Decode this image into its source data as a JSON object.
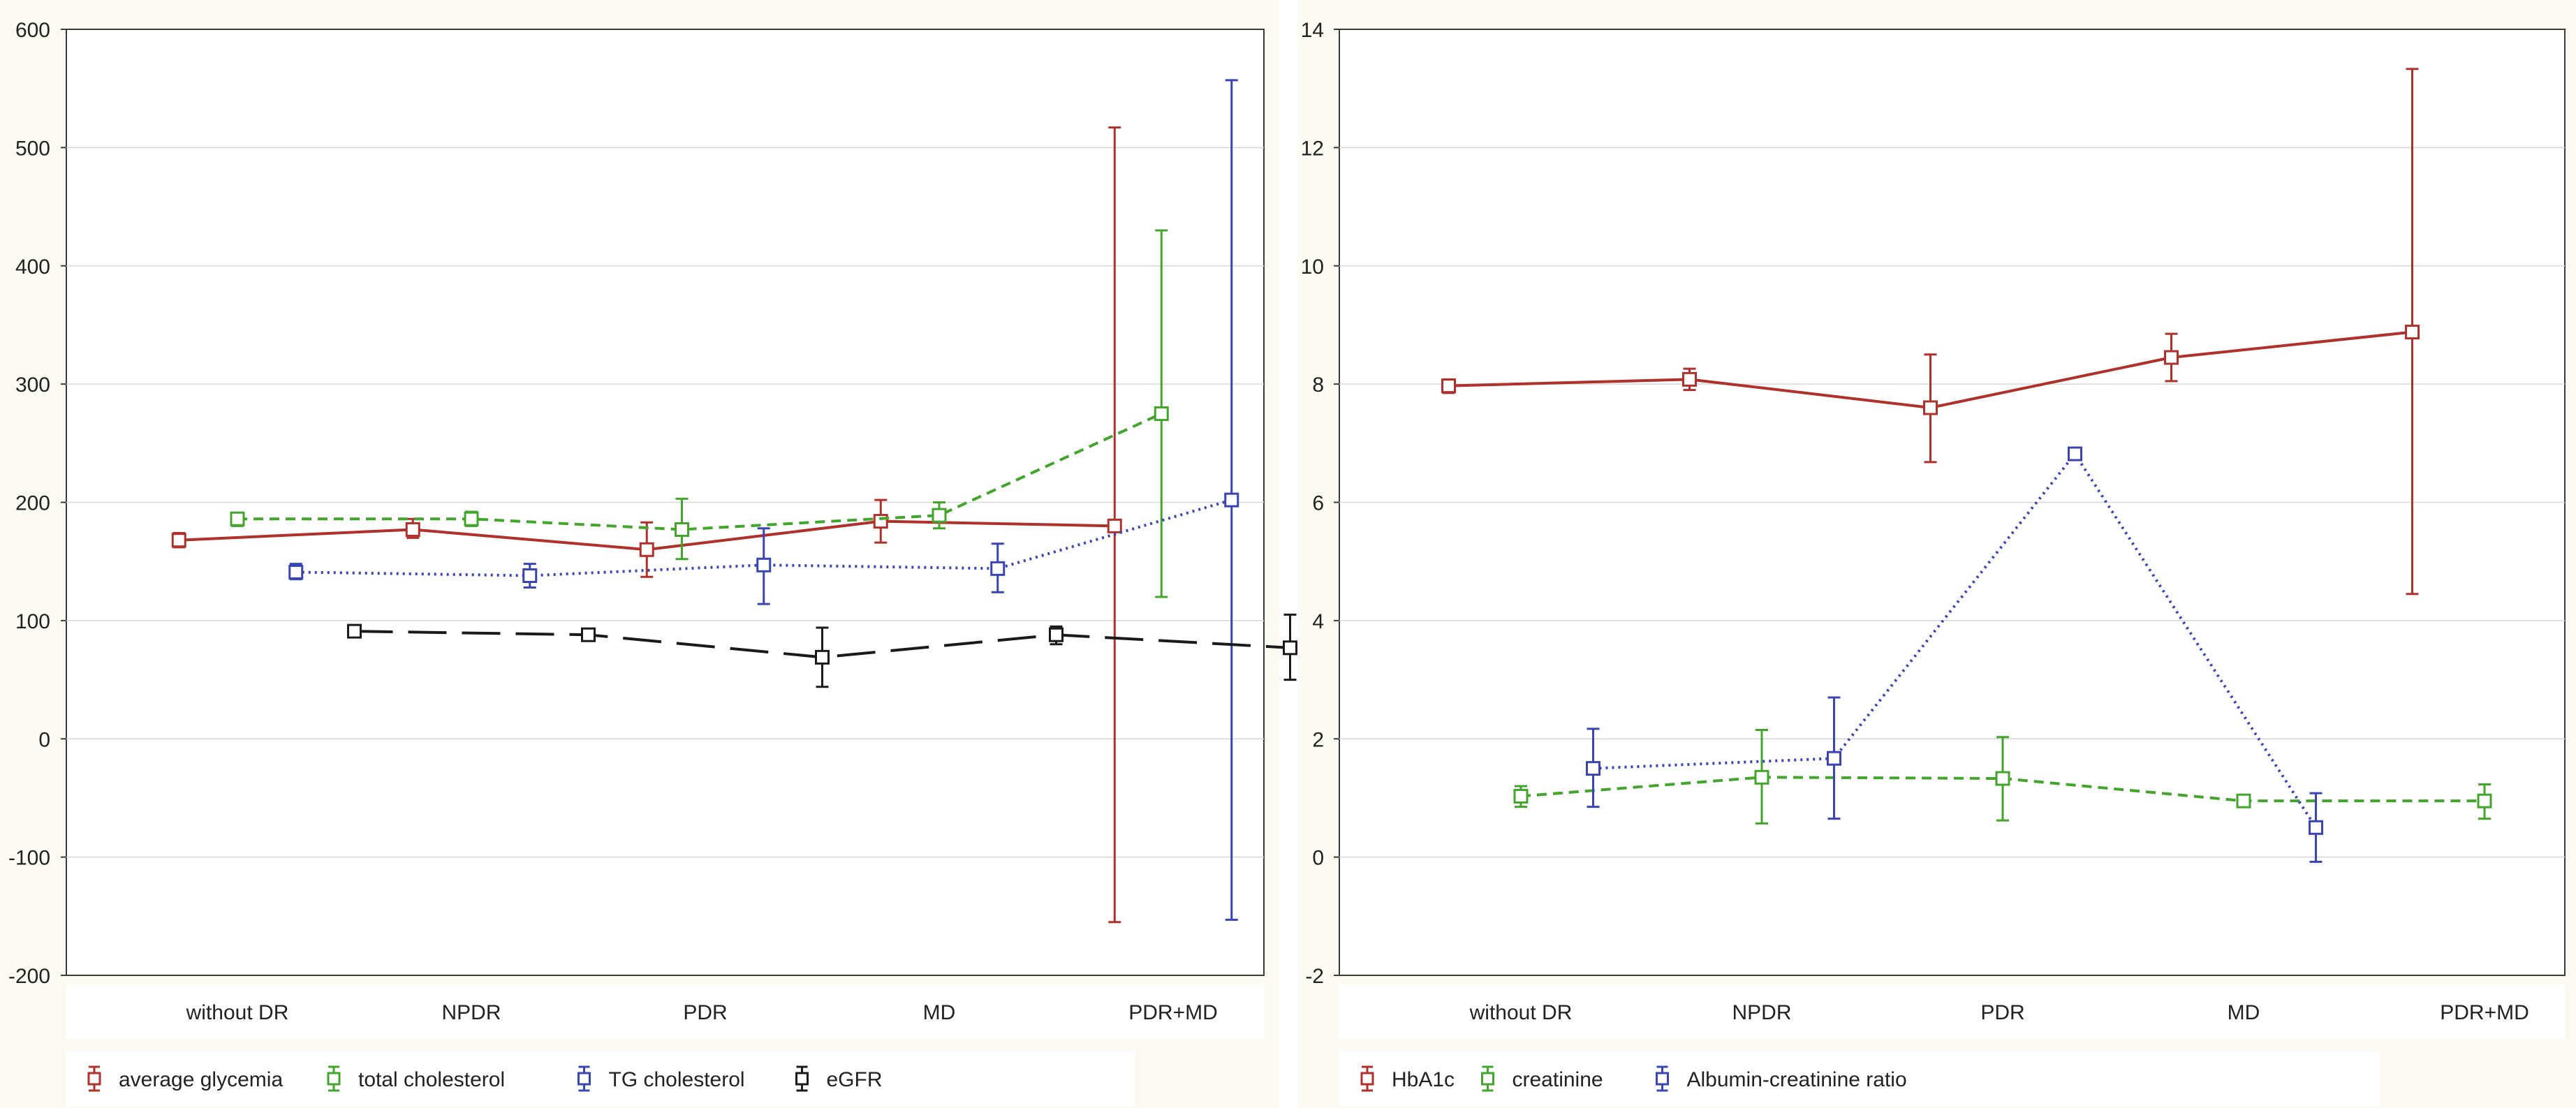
{
  "chart_data": [
    {
      "type": "line",
      "error_bars": true,
      "categories": [
        "without DR",
        "NPDR",
        "PDR",
        "MD",
        "PDR+MD"
      ],
      "ylim": [
        -200,
        600
      ],
      "yticks": [
        -200,
        -100,
        0,
        100,
        200,
        300,
        400,
        500,
        600
      ],
      "grid": true,
      "legend_position": "bottom",
      "series": [
        {
          "name": "average glycemia",
          "color": "#b0302b",
          "line": "solid",
          "x": [
            -0.25,
            0.75,
            1.75,
            2.75,
            3.75
          ],
          "values": [
            168,
            177,
            160,
            184,
            180
          ],
          "err_low": [
            162,
            170,
            137,
            166,
            -155
          ],
          "err_high": [
            174,
            186,
            183,
            202,
            517
          ]
        },
        {
          "name": "total cholesterol",
          "color": "#42a52c",
          "line": "dashed",
          "x": [
            0,
            1,
            1.9,
            3,
            3.95
          ],
          "values": [
            186,
            186,
            177,
            189,
            275
          ],
          "err_low": [
            180,
            180,
            152,
            178,
            120
          ],
          "err_high": [
            191,
            192,
            203,
            200,
            430
          ]
        },
        {
          "name": "TG cholesterol",
          "color": "#3944b5",
          "line": "dotted",
          "x": [
            0.25,
            1.25,
            2.25,
            3.25,
            4.25
          ],
          "values": [
            141,
            138,
            147,
            144,
            202
          ],
          "err_low": [
            135,
            128,
            114,
            124,
            -153
          ],
          "err_high": [
            148,
            148,
            178,
            165,
            557
          ]
        },
        {
          "name": "eGFR",
          "color": "#1a1a1a",
          "line": "longdash",
          "x": [
            0.5,
            1.5,
            2.5,
            3.5,
            4.5
          ],
          "values": [
            91,
            88,
            69,
            88,
            77
          ],
          "err_low": [
            87,
            83,
            44,
            80,
            50
          ],
          "err_high": [
            95,
            93,
            94,
            95,
            105
          ]
        }
      ]
    },
    {
      "type": "line",
      "error_bars": true,
      "categories": [
        "without DR",
        "NPDR",
        "PDR",
        "MD",
        "PDR+MD"
      ],
      "ylim": [
        -2,
        14
      ],
      "yticks": [
        -2,
        0,
        2,
        4,
        6,
        8,
        10,
        12,
        14
      ],
      "grid": true,
      "legend_position": "bottom",
      "series": [
        {
          "name": "HbA1c",
          "color": "#b0302b",
          "line": "solid",
          "x": [
            -0.3,
            0.7,
            1.7,
            2.7,
            3.7
          ],
          "values": [
            7.97,
            8.08,
            7.6,
            8.45,
            8.88
          ],
          "err_low": [
            7.85,
            7.9,
            6.68,
            8.05,
            4.45
          ],
          "err_high": [
            8.08,
            8.26,
            8.5,
            8.85,
            13.33
          ]
        },
        {
          "name": "creatinine",
          "color": "#42a52c",
          "line": "dashed",
          "x": [
            0,
            1,
            2,
            3,
            4
          ],
          "values": [
            1.03,
            1.35,
            1.33,
            0.95,
            0.95
          ],
          "err_low": [
            0.85,
            0.57,
            0.62,
            0.88,
            0.65
          ],
          "err_high": [
            1.2,
            2.15,
            2.03,
            1.02,
            1.23
          ]
        },
        {
          "name": "Albumin-creatinine ratio",
          "color": "#3944b5",
          "line": "dotted",
          "x": [
            0.3,
            1.3,
            2.3,
            3.3
          ],
          "values": [
            1.5,
            1.67,
            6.82,
            0.5
          ],
          "err_low": [
            0.85,
            0.65,
            6.78,
            -0.08
          ],
          "err_high": [
            2.17,
            2.7,
            6.86,
            1.08
          ]
        }
      ]
    }
  ]
}
